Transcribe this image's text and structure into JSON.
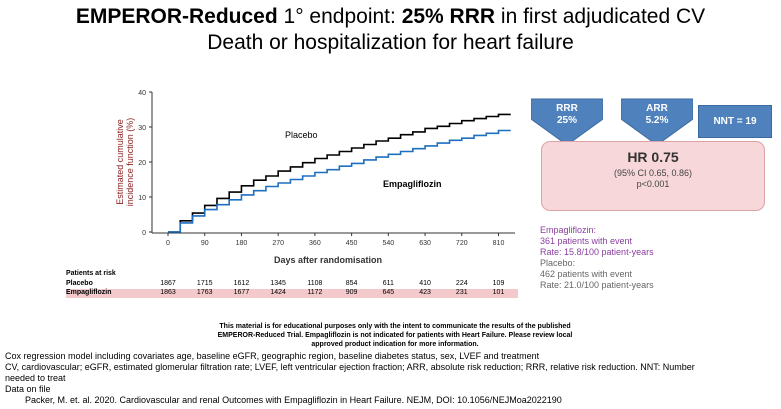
{
  "title": {
    "part1_bold": "EMPEROR-Reduced",
    "part2": " 1° endpoint: ",
    "part3_bold": "25% RRR",
    "part4": " in first adjudicated CV",
    "line2": "Death or hospitalization for heart failure"
  },
  "chart_data": {
    "type": "line",
    "ylabel": "Estimated cumulative incidence function (%)",
    "xlabel": "Days after randomisation",
    "ylim": [
      0,
      40
    ],
    "xlim": [
      0,
      840
    ],
    "y_ticks": [
      "0",
      "10",
      "20",
      "30",
      "40"
    ],
    "x_ticks": [
      "0",
      "90",
      "180",
      "270",
      "360",
      "450",
      "540",
      "630",
      "720",
      "810"
    ],
    "series": [
      {
        "name": "Placebo",
        "color": "#000000",
        "x": [
          0,
          30,
          60,
          90,
          120,
          150,
          180,
          210,
          240,
          270,
          300,
          330,
          360,
          390,
          420,
          450,
          480,
          510,
          540,
          570,
          600,
          630,
          660,
          690,
          720,
          750,
          780,
          810,
          840
        ],
        "y": [
          0,
          3.2,
          5.4,
          7.6,
          9.6,
          11.4,
          13.2,
          14.8,
          16.0,
          17.4,
          18.6,
          19.8,
          21.0,
          22.0,
          23.0,
          24.0,
          25.0,
          26.0,
          26.8,
          27.8,
          28.6,
          29.6,
          30.2,
          31.0,
          31.8,
          32.4,
          33.0,
          33.6,
          33.6
        ]
      },
      {
        "name": "Empagliflozin",
        "color": "#1f6fc0",
        "x": [
          0,
          30,
          60,
          90,
          120,
          150,
          180,
          210,
          240,
          270,
          300,
          330,
          360,
          390,
          420,
          450,
          480,
          510,
          540,
          570,
          600,
          630,
          660,
          690,
          720,
          750,
          780,
          810,
          840
        ],
        "y": [
          0,
          2.6,
          4.6,
          6.4,
          7.8,
          9.2,
          10.6,
          11.8,
          13.0,
          14.0,
          15.0,
          16.0,
          17.0,
          17.8,
          18.8,
          19.6,
          20.6,
          21.4,
          22.2,
          23.0,
          23.8,
          24.6,
          25.4,
          26.2,
          26.8,
          27.6,
          28.2,
          29.0,
          29.0
        ]
      }
    ]
  },
  "callouts": {
    "rrr": "RRR\n25%",
    "rrr_l1": "RRR",
    "rrr_l2": "25%",
    "arr_l1": "ARR",
    "arr_l2": "5.2%",
    "nnt": "NNT = 19",
    "hr_main": "HR 0.75",
    "hr_ci": "(95% CI 0.65, 0.86)",
    "hr_p": "p<0.001",
    "arrow_color": "#4f81bd"
  },
  "rates": {
    "emp_label": "Empagliflozin:",
    "emp_events": "361 patients with event",
    "emp_rate": "Rate: 15.8/100 patient-years",
    "pla_label": "Placebo:",
    "pla_events": "462 patients with event",
    "pla_rate": "Rate: 21.0/100 patient-years"
  },
  "risk": {
    "header": "Patients at risk",
    "placebo_label": "Placebo",
    "emp_label": "Empagliflozin",
    "placebo": [
      "1867",
      "1715",
      "1612",
      "1345",
      "1108",
      "854",
      "611",
      "410",
      "224",
      "109"
    ],
    "emp": [
      "1863",
      "1763",
      "1677",
      "1424",
      "1172",
      "909",
      "645",
      "423",
      "231",
      "101"
    ]
  },
  "disclaimer": {
    "l1": "This material is for educational purposes only with the intent to communicate the results of the published",
    "l2": "EMPEROR-Reduced Trial. Empagliflozin is not indicated for patients with Heart Failure. Please review local",
    "l3": "approved product indication for more information."
  },
  "abbrev": {
    "l1": "Cox regression model including covariates age, baseline eGFR, geographic region, baseline diabetes status, sex, LVEF and treatment",
    "l2": "CV, cardiovascular; eGFR, estimated glomerular filtration rate; LVEF, left ventricular ejection fraction; ARR, absolute risk reduction; RRR, relative risk reduction. NNT: Number",
    "l3": "needed to treat",
    "l4": "Data on file"
  },
  "reference": "Packer, M. et. al. 2020. Cardiovascular and renal Outcomes with Empagliflozin in Heart Failure. NEJM, DOI: 10.1056/NEJMoa2022190"
}
